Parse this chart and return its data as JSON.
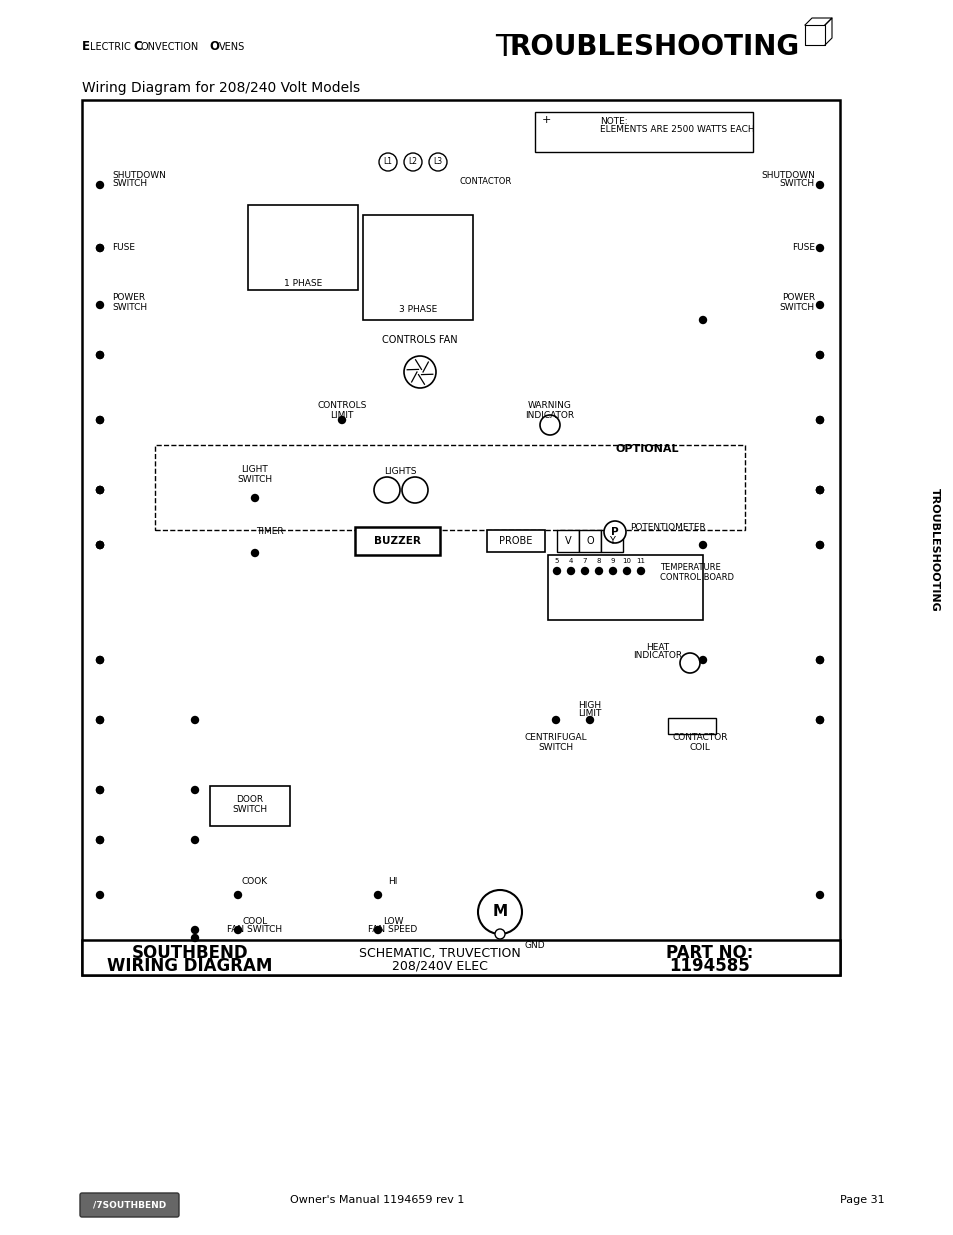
{
  "bg_color": "#ffffff",
  "page_width": 9.54,
  "page_height": 12.35,
  "title_left": "Electric Convection Ovens",
  "title_right": "Troubleshooting",
  "subtitle": "Wiring Diagram for 208/240 Volt Models",
  "footer_left": "Owner's Manual 1194659 rev 1",
  "footer_right": "Page 31",
  "bottom_left_1": "SOUTHBEND",
  "bottom_left_2": "WIRING DIAGRAM",
  "bottom_center_1": "SCHEMATIC, TRUVECTION",
  "bottom_center_2": "208/240V ELEC",
  "bottom_right_1": "PART NO:",
  "bottom_right_2": "1194585",
  "side_text": "TROUBLESHOOTING",
  "note_text1": "NOTE:",
  "note_text2": "ELEMENTS ARE 2500 WATTS EACH"
}
